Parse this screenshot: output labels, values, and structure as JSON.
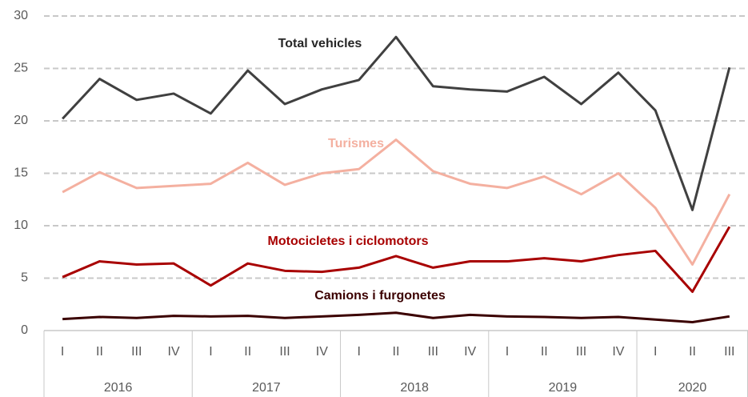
{
  "chart_data": {
    "type": "line",
    "groups": [
      {
        "name": "2016",
        "categories": [
          "I",
          "II",
          "III",
          "IV"
        ]
      },
      {
        "name": "2017",
        "categories": [
          "I",
          "II",
          "III",
          "IV"
        ]
      },
      {
        "name": "2018",
        "categories": [
          "I",
          "II",
          "III",
          "IV"
        ]
      },
      {
        "name": "2019",
        "categories": [
          "I",
          "II",
          "III",
          "IV"
        ]
      },
      {
        "name": "2020",
        "categories": [
          "I",
          "II",
          "III"
        ]
      }
    ],
    "series": [
      {
        "name": "Total vehicles",
        "color": "#404040",
        "values": [
          20.2,
          24.0,
          22.0,
          22.6,
          20.7,
          24.8,
          21.6,
          23.0,
          23.9,
          28.0,
          23.3,
          23.0,
          22.8,
          24.2,
          21.6,
          24.6,
          21.0,
          11.5,
          25.1
        ]
      },
      {
        "name": "Turismes",
        "color": "#f4b0a0",
        "values": [
          13.2,
          15.1,
          13.6,
          13.8,
          14.0,
          16.0,
          13.9,
          15.0,
          15.4,
          18.2,
          15.2,
          14.0,
          13.6,
          14.7,
          13.0,
          15.0,
          11.7,
          6.3,
          13.0
        ]
      },
      {
        "name": "Motocicletes i ciclomotors",
        "color": "#a80000",
        "values": [
          5.1,
          6.6,
          6.3,
          6.4,
          4.3,
          6.4,
          5.7,
          5.6,
          6.0,
          7.1,
          6.0,
          6.6,
          6.6,
          6.9,
          6.6,
          7.2,
          7.6,
          3.7,
          9.9
        ]
      },
      {
        "name": "Camions i furgonetes",
        "color": "#3b0000",
        "values": [
          1.1,
          1.3,
          1.2,
          1.4,
          1.35,
          1.4,
          1.2,
          1.35,
          1.5,
          1.7,
          1.2,
          1.5,
          1.35,
          1.3,
          1.2,
          1.3,
          1.05,
          0.8,
          1.35
        ]
      }
    ],
    "ylim": [
      0,
      30
    ],
    "yticks": [
      0,
      5,
      10,
      15,
      20,
      25,
      30
    ],
    "grid": true
  }
}
